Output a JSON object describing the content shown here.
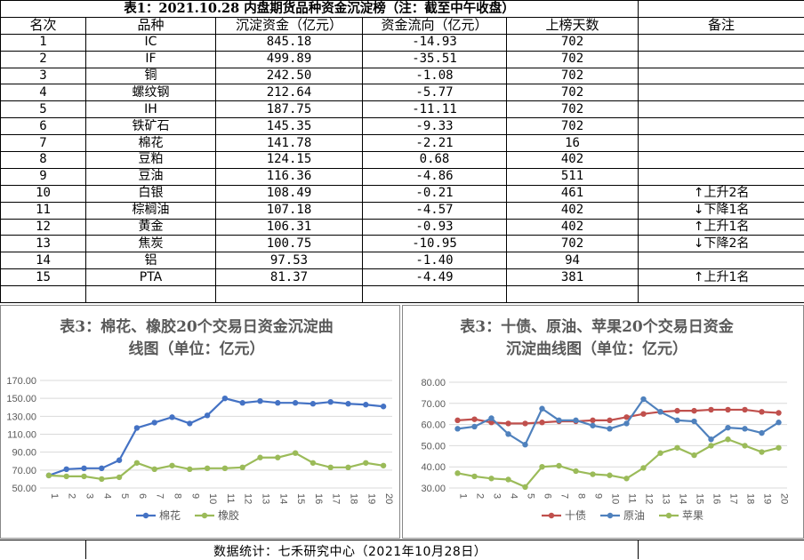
{
  "table": {
    "title": "表1：2021.10.28 内盘期货品种资金沉淀榜（注：截至中午收盘）",
    "headers": [
      "名次",
      "品种",
      "沉淀资金（亿元）",
      "资金流向（亿元）",
      "上榜天数",
      "备注"
    ],
    "rows": [
      {
        "rank": "1",
        "name": "IC",
        "capital": "845.18",
        "flow": "-14.93",
        "days": "702",
        "note": ""
      },
      {
        "rank": "2",
        "name": "IF",
        "capital": "499.89",
        "flow": "-35.51",
        "days": "702",
        "note": ""
      },
      {
        "rank": "3",
        "name": "铜",
        "capital": "242.50",
        "flow": "-1.08",
        "days": "702",
        "note": ""
      },
      {
        "rank": "4",
        "name": "螺纹钢",
        "capital": "212.64",
        "flow": "-5.77",
        "days": "702",
        "note": ""
      },
      {
        "rank": "5",
        "name": "IH",
        "capital": "187.75",
        "flow": "-11.11",
        "days": "702",
        "note": ""
      },
      {
        "rank": "6",
        "name": "铁矿石",
        "capital": "145.35",
        "flow": "-9.33",
        "days": "702",
        "note": ""
      },
      {
        "rank": "7",
        "name": "棉花",
        "capital": "141.78",
        "flow": "-2.21",
        "days": "16",
        "note": ""
      },
      {
        "rank": "8",
        "name": "豆粕",
        "capital": "124.15",
        "flow": "0.68",
        "days": "402",
        "note": ""
      },
      {
        "rank": "9",
        "name": "豆油",
        "capital": "116.36",
        "flow": "-4.86",
        "days": "511",
        "note": ""
      },
      {
        "rank": "10",
        "name": "白银",
        "capital": "108.49",
        "flow": "-0.21",
        "days": "461",
        "note": "↑上升2名"
      },
      {
        "rank": "11",
        "name": "棕榈油",
        "capital": "107.18",
        "flow": "-4.57",
        "days": "402",
        "note": "↓下降1名"
      },
      {
        "rank": "12",
        "name": "黄金",
        "capital": "106.31",
        "flow": "-0.93",
        "days": "402",
        "note": "↑上升1名"
      },
      {
        "rank": "13",
        "name": "焦炭",
        "capital": "100.75",
        "flow": "-10.95",
        "days": "702",
        "note": "↓下降2名"
      },
      {
        "rank": "14",
        "name": "铝",
        "capital": "97.53",
        "flow": "-1.40",
        "days": "94",
        "note": ""
      },
      {
        "rank": "15",
        "name": "PTA",
        "capital": "81.37",
        "flow": "-4.49",
        "days": "381",
        "note": "↑上升1名"
      }
    ]
  },
  "chart_data": [
    {
      "type": "line",
      "title": "表3：棉花、橡胶20个交易日资金沉淀曲线图（单位：亿元）",
      "title_lines": [
        "表3：棉花、橡胶20个交易日资金沉淀曲",
        "线图（单位：亿元）"
      ],
      "x": [
        "1",
        "2",
        "3",
        "4",
        "5",
        "6",
        "7",
        "8",
        "9",
        "10",
        "11",
        "12",
        "13",
        "14",
        "15",
        "16",
        "17",
        "18",
        "19",
        "20"
      ],
      "ylim": [
        50,
        170
      ],
      "yticks": [
        "50.00",
        "70.00",
        "90.00",
        "110.00",
        "130.00",
        "150.00",
        "170.00"
      ],
      "legend_position": "bottom",
      "grid": true,
      "series": [
        {
          "name": "棉花",
          "color": "#4472C4",
          "values": [
            64,
            71,
            72,
            72,
            81,
            117,
            123,
            129,
            122,
            131,
            150,
            145,
            147,
            145,
            145,
            144,
            146,
            144,
            143,
            141
          ]
        },
        {
          "name": "橡胶",
          "color": "#9BBB59",
          "values": [
            64,
            63,
            63,
            60,
            62,
            78,
            71,
            75,
            71,
            72,
            72,
            73,
            84,
            84,
            89,
            78,
            73,
            73,
            78,
            75
          ]
        }
      ]
    },
    {
      "type": "line",
      "title": "表3：十债、原油、苹果20个交易日资金沉淀曲线图（单位：亿元）",
      "title_lines": [
        "表3：十债、原油、苹果20个交易日资金",
        "沉淀曲线图（单位：亿元）"
      ],
      "x": [
        "1",
        "2",
        "3",
        "4",
        "5",
        "6",
        "7",
        "8",
        "9",
        "10",
        "11",
        "12",
        "13",
        "14",
        "15",
        "16",
        "17",
        "18",
        "19",
        "20"
      ],
      "ylim": [
        30,
        80
      ],
      "yticks": [
        "30.00",
        "40.00",
        "50.00",
        "60.00",
        "70.00",
        "80.00"
      ],
      "legend_position": "bottom",
      "grid": true,
      "series": [
        {
          "name": "十债",
          "color": "#C0504D",
          "values": [
            62,
            62.5,
            61,
            60.5,
            60.5,
            61,
            61.5,
            61.5,
            62,
            62,
            63.5,
            65,
            66,
            66.5,
            66.5,
            67,
            67,
            67,
            66,
            65.5
          ]
        },
        {
          "name": "原油",
          "color": "#4F81BD",
          "values": [
            58,
            59,
            63,
            55.5,
            50.5,
            67.5,
            62,
            62,
            59.5,
            58,
            60.5,
            72,
            66,
            62,
            61.5,
            53,
            58.5,
            58,
            56,
            61
          ]
        },
        {
          "name": "苹果",
          "color": "#9BBB59",
          "values": [
            37,
            35.5,
            34.5,
            34,
            30.5,
            40,
            40.5,
            38,
            36.5,
            36,
            34.5,
            39.5,
            46.5,
            49,
            45.5,
            50,
            53,
            50,
            47,
            49
          ]
        }
      ]
    }
  ],
  "footer": {
    "text": "数据统计：七禾研究中心（2021年10月28日）"
  }
}
